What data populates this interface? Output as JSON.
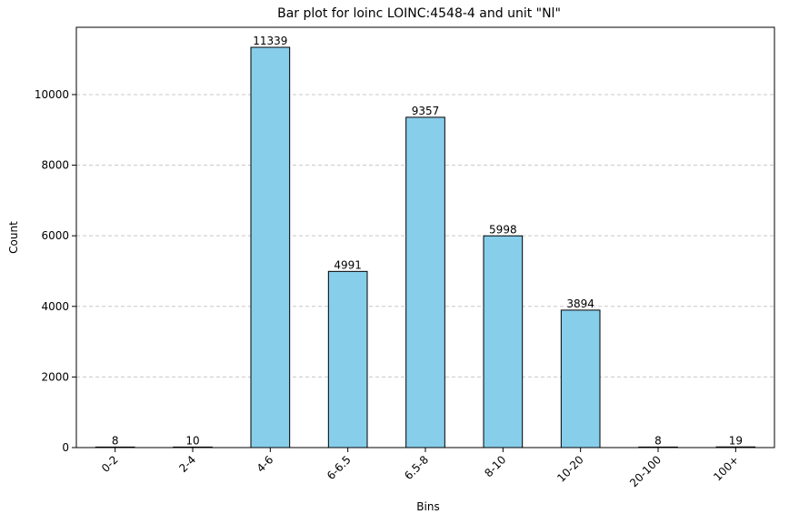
{
  "chart_data": {
    "type": "bar",
    "title": "Bar plot for loinc LOINC:4548-4 and unit \"Nl\"",
    "xlabel": "Bins",
    "ylabel": "Count",
    "categories": [
      "0-2",
      "2-4",
      "4-6",
      "6-6.5",
      "6.5-8",
      "8-10",
      "10-20",
      "20-100",
      "100+"
    ],
    "values": [
      8,
      10,
      11339,
      4991,
      9357,
      5998,
      3894,
      8,
      19
    ],
    "data_labels": [
      "8",
      "10",
      "11339",
      "4991",
      "9357",
      "5998",
      "3894",
      "8",
      "19"
    ],
    "yticks": [
      0,
      2000,
      4000,
      6000,
      8000,
      10000
    ],
    "ytick_labels": [
      "0",
      "2000",
      "4000",
      "6000",
      "8000",
      "10000"
    ],
    "ylim": [
      0,
      11906
    ],
    "grid": "y-dashed",
    "bar_color": "#87CEEB",
    "bar_edge_color": "#000000",
    "grid_color": "#c8c8c8"
  }
}
